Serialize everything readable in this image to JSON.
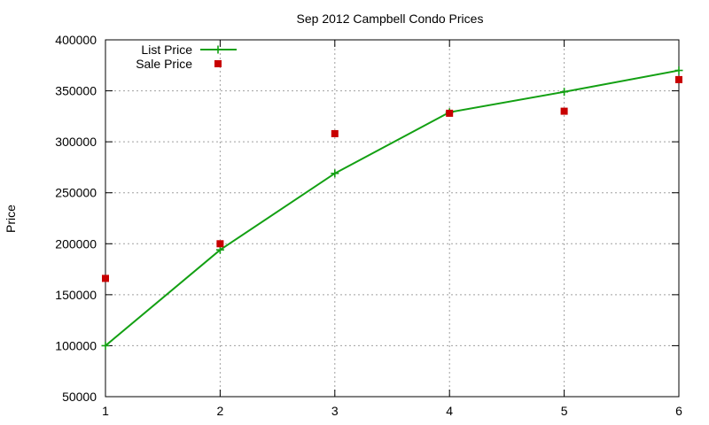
{
  "chart_data": {
    "type": "line",
    "title": "Sep 2012 Campbell Condo Prices",
    "xlabel": "",
    "ylabel": "Price",
    "x": [
      1,
      2,
      3,
      4,
      5,
      6
    ],
    "xlim": [
      1,
      6
    ],
    "ylim": [
      50000,
      400000
    ],
    "xticks": [
      "1",
      "2",
      "3",
      "4",
      "5",
      "6"
    ],
    "yticks": [
      "50000",
      "100000",
      "150000",
      "200000",
      "250000",
      "300000",
      "350000",
      "400000"
    ],
    "grid": true,
    "legend_position": "top-left",
    "series": [
      {
        "name": "List Price",
        "kind": "line-with-plus-markers",
        "color": "#13a013",
        "values": [
          100000,
          194000,
          269000,
          329000,
          349000,
          370000
        ]
      },
      {
        "name": "Sale Price",
        "kind": "square-markers",
        "color": "#c80000",
        "values": [
          166000,
          200000,
          308000,
          328000,
          330000,
          361000
        ]
      }
    ]
  }
}
